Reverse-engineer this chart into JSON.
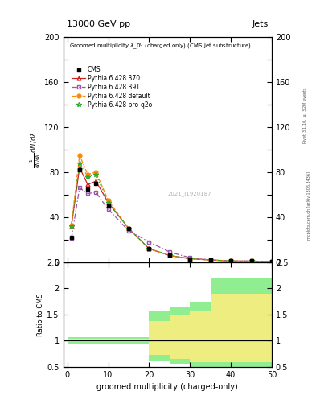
{
  "title_top": "13000 GeV pp",
  "title_right": "Jets",
  "watermark": "2021_I1920187",
  "xlabel": "groomed multiplicity (charged-only)",
  "ylabel_ratio": "Ratio to CMS",
  "x_cms": [
    1,
    3,
    5,
    7,
    10,
    15,
    20,
    25,
    30,
    35,
    40,
    45,
    50
  ],
  "y_cms": [
    22,
    82,
    65,
    70,
    50,
    30,
    12,
    6,
    3,
    2,
    1,
    1,
    0.5
  ],
  "x_p370": [
    1,
    3,
    5,
    7,
    10,
    15,
    20,
    25,
    30,
    35,
    40,
    45,
    50
  ],
  "y_p370": [
    32,
    84,
    69,
    72,
    53,
    30,
    12,
    6,
    3,
    2,
    1,
    1,
    0.5
  ],
  "x_p391": [
    1,
    3,
    5,
    7,
    10,
    15,
    20,
    25,
    30,
    35,
    40,
    45,
    50
  ],
  "y_p391": [
    21,
    66,
    61,
    62,
    47,
    28,
    18,
    9,
    4,
    2,
    1,
    1,
    0.5
  ],
  "x_pdef": [
    1,
    3,
    5,
    7,
    10,
    15,
    20,
    25,
    30,
    35,
    40,
    45,
    50
  ],
  "y_pdef": [
    33,
    95,
    78,
    80,
    55,
    30,
    12,
    6,
    3,
    2,
    1,
    1,
    0.5
  ],
  "x_pq2o": [
    1,
    3,
    5,
    7,
    10,
    15,
    20,
    25,
    30,
    35,
    40,
    45,
    50
  ],
  "y_pq2o": [
    32,
    88,
    76,
    78,
    53,
    30,
    12,
    6,
    3,
    2,
    1,
    1,
    0.5
  ],
  "ratio_x_edges": [
    0,
    5,
    10,
    15,
    20,
    25,
    30,
    35,
    40,
    50
  ],
  "ratio_green_lo": [
    0.94,
    0.94,
    0.94,
    0.94,
    0.62,
    0.55,
    0.48,
    0.48,
    0.48
  ],
  "ratio_green_hi": [
    1.06,
    1.06,
    1.06,
    1.06,
    1.55,
    1.65,
    1.75,
    2.2,
    2.2
  ],
  "ratio_yellow_lo": [
    0.97,
    0.97,
    0.97,
    0.97,
    0.72,
    0.65,
    0.58,
    0.58,
    0.58
  ],
  "ratio_yellow_hi": [
    1.03,
    1.03,
    1.03,
    1.03,
    1.38,
    1.48,
    1.58,
    1.9,
    1.9
  ],
  "color_cms": "#000000",
  "color_p370": "#cc2222",
  "color_p391": "#9955aa",
  "color_pdef": "#ff8800",
  "color_pq2o": "#33aa33",
  "ylim_main": [
    0,
    200
  ],
  "ylim_ratio": [
    0.5,
    2.5
  ],
  "yticks_main": [
    0,
    20,
    40,
    60,
    80,
    100,
    120,
    140,
    160,
    180,
    200
  ],
  "yticks_ratio_labels": [
    "0.5",
    "1",
    "1.5",
    "2",
    "2.5"
  ],
  "yticks_ratio_vals": [
    0.5,
    1.0,
    1.5,
    2.0,
    2.5
  ],
  "xlim": [
    -1,
    50
  ],
  "xticks": [
    0,
    10,
    20,
    30,
    40,
    50
  ]
}
